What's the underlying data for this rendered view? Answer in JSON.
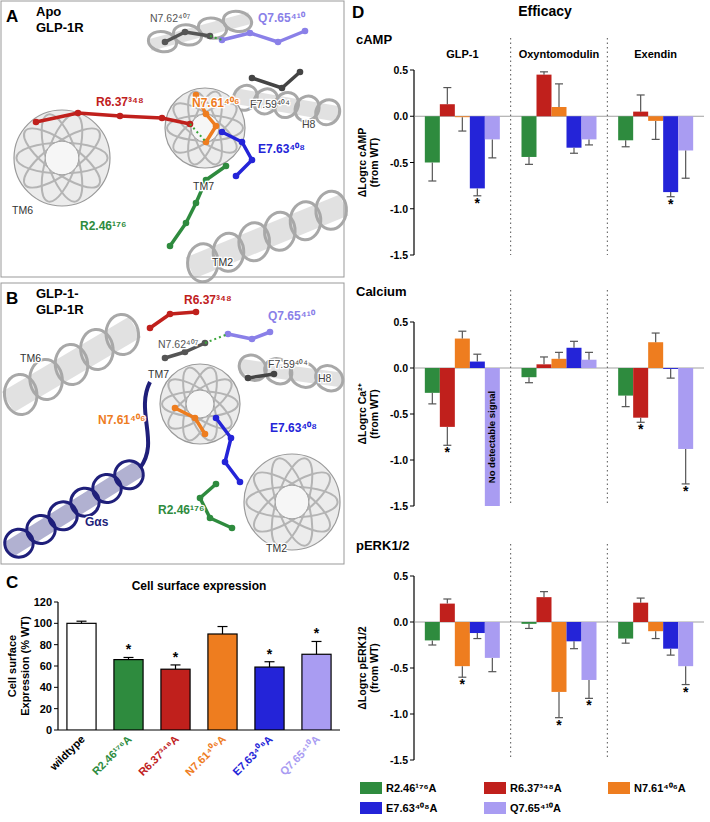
{
  "panel_labels": [
    "A",
    "B",
    "C",
    "D"
  ],
  "panel_d_title": "Efficacy",
  "structure_panels": [
    {
      "title_lines": [
        "Apo",
        "GLP-1R"
      ],
      "labels": [
        {
          "text": "N7.62⁴⁰⁷",
          "color": "#555555"
        },
        {
          "text": "Q7.65⁴¹⁰",
          "color": "#8a80e8"
        },
        {
          "text": "R6.37³⁴⁸",
          "color": "#c0201c"
        },
        {
          "text": "N7.61⁴⁰⁶",
          "color": "#ee7d1f"
        },
        {
          "text": "F7.59⁴⁰⁴",
          "color": "#444444"
        },
        {
          "text": "H8",
          "color": "#444444"
        },
        {
          "text": "E7.63⁴⁰⁸",
          "color": "#2424d8"
        },
        {
          "text": "TM7",
          "color": "#333333"
        },
        {
          "text": "TM6",
          "color": "#333333"
        },
        {
          "text": "R2.46¹⁷⁶",
          "color": "#2e8b3e"
        },
        {
          "text": "TM2",
          "color": "#333333"
        }
      ]
    },
    {
      "title_lines": [
        "GLP-1-",
        "GLP-1R"
      ],
      "labels": [
        {
          "text": "R6.37³⁴⁸",
          "color": "#c0201c"
        },
        {
          "text": "Q7.65⁴¹⁰",
          "color": "#8a80e8"
        },
        {
          "text": "N7.62⁴⁰⁷",
          "color": "#555555"
        },
        {
          "text": "F7.59⁴⁰⁴",
          "color": "#444444"
        },
        {
          "text": "TM6",
          "color": "#333333"
        },
        {
          "text": "TM7",
          "color": "#333333"
        },
        {
          "text": "H8",
          "color": "#444444"
        },
        {
          "text": "N7.61⁴⁰⁶",
          "color": "#ee7d1f"
        },
        {
          "text": "E7.63⁴⁰⁸",
          "color": "#2424d8"
        },
        {
          "text": "Gαs",
          "color": "#1f1f7a"
        },
        {
          "text": "R2.46¹⁷⁶",
          "color": "#2e8b3e"
        },
        {
          "text": "TM2",
          "color": "#333333"
        }
      ]
    }
  ],
  "chart_data": [
    {
      "type": "bar",
      "title": "Cell surface expression",
      "ylabel": "Cell surface Expression (% WT)",
      "categories": [
        "wildtype",
        "R2.46¹⁷⁶A",
        "R6.37³⁴⁸A",
        "N7.61⁴⁰⁶A",
        "E7.63⁴⁰⁸A",
        "Q7.65⁴¹⁰A"
      ],
      "values": [
        100,
        66,
        57,
        90,
        59,
        71
      ],
      "errors": [
        2,
        2,
        4,
        7,
        5,
        12
      ],
      "significance": [
        null,
        "*",
        "*",
        null,
        "*",
        "*"
      ],
      "colors": [
        "#ffffff",
        "#2e8b3e",
        "#c0201c",
        "#ee7d1f",
        "#2424d8",
        "#a99cf2"
      ],
      "ylim": [
        0,
        120
      ],
      "yticks": [
        0,
        20,
        40,
        60,
        80,
        100,
        120
      ],
      "grid": false
    },
    {
      "type": "bar",
      "title": "cAMP",
      "ylabel": "ΔLogτc cAMP (from WT)",
      "categories": [
        "GLP-1",
        "Oxyntomodulin",
        "Exendin"
      ],
      "series": [
        {
          "color": "#2e8b3e",
          "values": [
            -0.5,
            -0.44,
            -0.26
          ],
          "errors": [
            0.2,
            0.08,
            0.07
          ],
          "significance": [
            null,
            null,
            null
          ]
        },
        {
          "color": "#c0201c",
          "values": [
            0.13,
            0.45,
            0.05
          ],
          "errors": [
            0.18,
            0.03,
            0.18
          ],
          "significance": [
            null,
            null,
            null
          ]
        },
        {
          "color": "#ee7d1f",
          "values": [
            -0.01,
            0.1,
            -0.05
          ],
          "errors": [
            0.15,
            0.25,
            0.2
          ],
          "significance": [
            null,
            null,
            null
          ]
        },
        {
          "color": "#2424d8",
          "values": [
            -0.78,
            -0.34,
            -0.82
          ],
          "errors": [
            0.08,
            0.06,
            0.05
          ],
          "significance": [
            "*",
            null,
            "*"
          ]
        },
        {
          "color": "#a99cf2",
          "values": [
            -0.25,
            -0.25,
            -0.37
          ],
          "errors": [
            0.2,
            0.06,
            0.3
          ],
          "significance": [
            null,
            null,
            null
          ]
        }
      ],
      "ylim": [
        -1.5,
        0.5
      ],
      "yticks": [
        -1.5,
        {
          "value": -1,
          "label": "-1.0"
        },
        -0.5,
        {
          "value": 0,
          "label": "0.0"
        },
        0.5
      ],
      "grid": false
    },
    {
      "type": "bar",
      "title": "Calcium",
      "ylabel": "ΔLogτc Ca²⁺ (from WT)",
      "categories": [
        null,
        null,
        null
      ],
      "series": [
        {
          "color": "#2e8b3e",
          "values": [
            -0.27,
            -0.1,
            -0.3
          ],
          "errors": [
            0.12,
            0.06,
            0.12
          ],
          "significance": [
            null,
            null,
            null
          ]
        },
        {
          "color": "#c0201c",
          "values": [
            -0.64,
            0.04,
            -0.54
          ],
          "errors": [
            0.2,
            0.08,
            0.05
          ],
          "significance": [
            "*",
            null,
            "*"
          ]
        },
        {
          "color": "#ee7d1f",
          "values": [
            0.32,
            0.1,
            0.28
          ],
          "errors": [
            0.08,
            0.07,
            0.1
          ],
          "significance": [
            null,
            null,
            null
          ]
        },
        {
          "color": "#2424d8",
          "values": [
            0.07,
            0.22,
            -0.01
          ],
          "errors": [
            0.08,
            0.07,
            0.1
          ],
          "significance": [
            null,
            null,
            null
          ]
        },
        {
          "color": "#a99cf2",
          "values": [
            null,
            0.09,
            -0.88
          ],
          "errors": [
            null,
            0.08,
            0.38
          ],
          "significance": [
            null,
            null,
            "*"
          ],
          "value_notes": [
            "No detectable signal",
            null,
            null
          ]
        }
      ],
      "ylim": [
        -1.5,
        0.5
      ],
      "yticks": [
        -1.5,
        {
          "value": -1,
          "label": "-1.0"
        },
        -0.5,
        {
          "value": 0,
          "label": "0.0"
        },
        0.5
      ],
      "grid": false
    },
    {
      "type": "bar",
      "title": "pERK1/2",
      "ylabel": "ΔLogτc pERK1/2 (from WT)",
      "categories": [
        null,
        null,
        null
      ],
      "series": [
        {
          "name": "R2.46¹⁷⁶A",
          "color": "#2e8b3e",
          "values": [
            -0.2,
            -0.02,
            -0.18
          ],
          "errors": [
            0.05,
            0.05,
            0.05
          ],
          "significance": [
            null,
            null,
            null
          ]
        },
        {
          "name": "R6.37³⁴⁸A",
          "color": "#c0201c",
          "values": [
            0.2,
            0.27,
            0.21
          ],
          "errors": [
            0.05,
            0.06,
            0.05
          ],
          "significance": [
            null,
            null,
            null
          ]
        },
        {
          "name": "N7.61⁴⁰⁶A",
          "color": "#ee7d1f",
          "values": [
            -0.48,
            -0.76,
            -0.1
          ],
          "errors": [
            0.12,
            0.28,
            0.08
          ],
          "significance": [
            "*",
            "*",
            null
          ]
        },
        {
          "name": "E7.63⁴⁰⁸A",
          "color": "#2424d8",
          "values": [
            -0.12,
            -0.21,
            -0.29
          ],
          "errors": [
            0.06,
            0.08,
            0.07
          ],
          "significance": [
            null,
            null,
            null
          ]
        },
        {
          "name": "Q7.65⁴¹⁰A",
          "color": "#a99cf2",
          "values": [
            -0.39,
            -0.63,
            -0.48
          ],
          "errors": [
            0.15,
            0.2,
            0.2
          ],
          "significance": [
            null,
            "*",
            "*"
          ]
        }
      ],
      "ylim": [
        -1.5,
        0.5
      ],
      "yticks": [
        -1.5,
        {
          "value": -1,
          "label": "-1.0"
        },
        -0.5,
        {
          "value": 0,
          "label": "0.0"
        },
        0.5
      ],
      "grid": false,
      "legend": "bottom"
    }
  ]
}
